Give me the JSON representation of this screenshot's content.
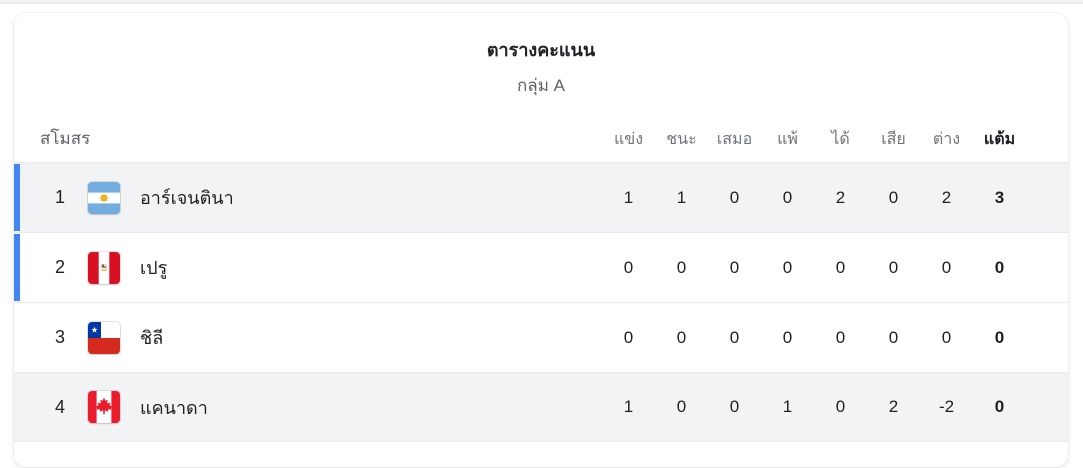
{
  "standings": {
    "title": "ตารางคะแนน",
    "subtitle": "กลุ่ม A",
    "club_column_header": "สโมสร",
    "stat_headers": [
      "แข่ง",
      "ชนะ",
      "เสมอ",
      "แพ้",
      "ได้",
      "เสีย",
      "ต่าง",
      "แต้ม"
    ],
    "rows": [
      {
        "rank": "1",
        "team": "อาร์เจนตินา",
        "flag": "argentina",
        "stats": [
          "1",
          "1",
          "0",
          "0",
          "2",
          "0",
          "2",
          "3"
        ],
        "highlighted": true,
        "qualification_bar": true
      },
      {
        "rank": "2",
        "team": "เปรู",
        "flag": "peru",
        "stats": [
          "0",
          "0",
          "0",
          "0",
          "0",
          "0",
          "0",
          "0"
        ],
        "highlighted": false,
        "qualification_bar": true
      },
      {
        "rank": "3",
        "team": "ชิลี",
        "flag": "chile",
        "stats": [
          "0",
          "0",
          "0",
          "0",
          "0",
          "0",
          "0",
          "0"
        ],
        "highlighted": false,
        "qualification_bar": false
      },
      {
        "rank": "4",
        "team": "แคนาดา",
        "flag": "canada",
        "stats": [
          "1",
          "0",
          "0",
          "1",
          "0",
          "2",
          "-2",
          "0"
        ],
        "highlighted": true,
        "qualification_bar": false
      }
    ]
  },
  "colors": {
    "qualification_bar_blue": "#4285f4",
    "row_highlight_gray": "#f1f3f4",
    "text_dark": "#202124",
    "text_gray": "#5f6368",
    "divider": "#e8eaed"
  }
}
